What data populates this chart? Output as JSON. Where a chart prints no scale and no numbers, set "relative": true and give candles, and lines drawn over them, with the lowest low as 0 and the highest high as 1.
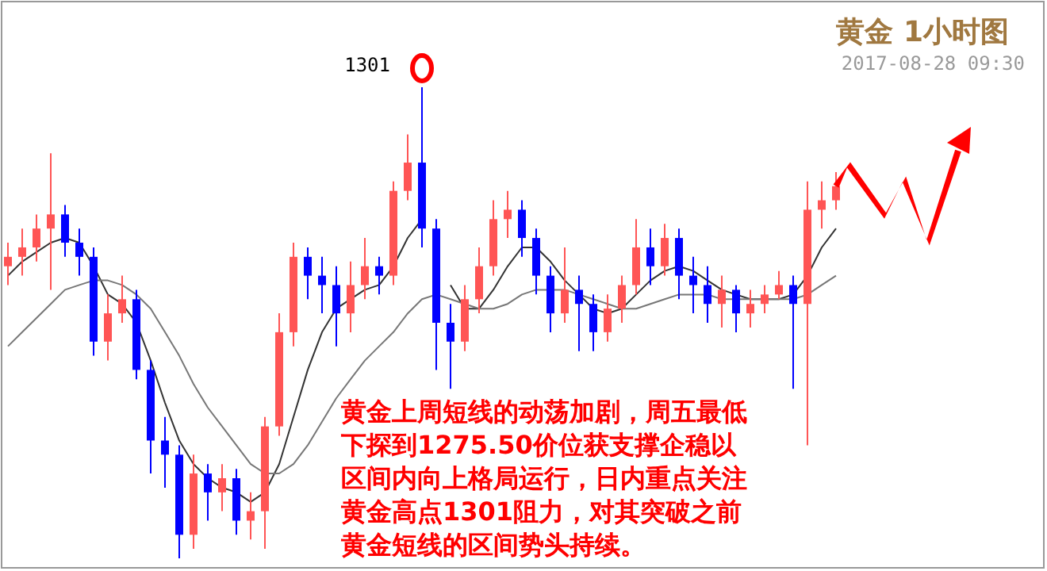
{
  "chart_data": {
    "type": "candlestick",
    "title": "黄金 1小时图",
    "subtitle": "2017-08-28 09:30",
    "relative": true,
    "categories": [
      null,
      null,
      null,
      null,
      null,
      null,
      null,
      null,
      null,
      null,
      null,
      null,
      null,
      null,
      null,
      null,
      null,
      null,
      null,
      null,
      null,
      null,
      null,
      null,
      null,
      null,
      null,
      null,
      null,
      null,
      null,
      null,
      null,
      null,
      null,
      null,
      null,
      null,
      null,
      null,
      null,
      null,
      null,
      null,
      null,
      null,
      null,
      null,
      null,
      null,
      null,
      null,
      null,
      null,
      null,
      null,
      null,
      null,
      null
    ],
    "ohlc": [
      [
        0.62,
        0.67,
        0.58,
        0.64
      ],
      [
        0.64,
        0.7,
        0.6,
        0.66
      ],
      [
        0.66,
        0.73,
        0.63,
        0.7
      ],
      [
        0.7,
        0.86,
        0.57,
        0.73
      ],
      [
        0.73,
        0.75,
        0.64,
        0.67
      ],
      [
        0.67,
        0.7,
        0.6,
        0.64
      ],
      [
        0.64,
        0.66,
        0.43,
        0.46
      ],
      [
        0.46,
        0.56,
        0.42,
        0.52
      ],
      [
        0.52,
        0.6,
        0.5,
        0.55
      ],
      [
        0.55,
        0.57,
        0.38,
        0.4
      ],
      [
        0.4,
        0.42,
        0.18,
        0.25
      ],
      [
        0.25,
        0.3,
        0.15,
        0.22
      ],
      [
        0.22,
        0.24,
        0.0,
        0.05
      ],
      [
        0.05,
        0.22,
        0.02,
        0.18
      ],
      [
        0.18,
        0.2,
        0.08,
        0.14
      ],
      [
        0.14,
        0.2,
        0.1,
        0.17
      ],
      [
        0.17,
        0.19,
        0.05,
        0.08
      ],
      [
        0.08,
        0.14,
        0.04,
        0.1
      ],
      [
        0.1,
        0.3,
        0.02,
        0.28
      ],
      [
        0.28,
        0.52,
        0.26,
        0.48
      ],
      [
        0.48,
        0.67,
        0.45,
        0.64
      ],
      [
        0.64,
        0.66,
        0.55,
        0.6
      ],
      [
        0.6,
        0.64,
        0.52,
        0.58
      ],
      [
        0.58,
        0.62,
        0.45,
        0.52
      ],
      [
        0.52,
        0.63,
        0.48,
        0.58
      ],
      [
        0.58,
        0.68,
        0.55,
        0.62
      ],
      [
        0.62,
        0.64,
        0.56,
        0.6
      ],
      [
        0.6,
        0.8,
        0.58,
        0.78
      ],
      [
        0.78,
        0.9,
        0.76,
        0.84
      ],
      [
        0.84,
        1.0,
        0.66,
        0.7
      ],
      [
        0.7,
        0.72,
        0.4,
        0.5
      ],
      [
        0.5,
        0.54,
        0.36,
        0.46
      ],
      [
        0.46,
        0.58,
        0.44,
        0.55
      ],
      [
        0.55,
        0.66,
        0.52,
        0.62
      ],
      [
        0.62,
        0.76,
        0.6,
        0.72
      ],
      [
        0.72,
        0.78,
        0.68,
        0.74
      ],
      [
        0.74,
        0.76,
        0.64,
        0.68
      ],
      [
        0.68,
        0.7,
        0.56,
        0.6
      ],
      [
        0.6,
        0.62,
        0.48,
        0.52
      ],
      [
        0.52,
        0.66,
        0.5,
        0.57
      ],
      [
        0.57,
        0.6,
        0.44,
        0.54
      ],
      [
        0.54,
        0.56,
        0.44,
        0.48
      ],
      [
        0.48,
        0.56,
        0.46,
        0.53
      ],
      [
        0.53,
        0.6,
        0.5,
        0.58
      ],
      [
        0.58,
        0.72,
        0.56,
        0.66
      ],
      [
        0.66,
        0.7,
        0.58,
        0.62
      ],
      [
        0.62,
        0.71,
        0.6,
        0.68
      ],
      [
        0.68,
        0.7,
        0.55,
        0.6
      ],
      [
        0.6,
        0.64,
        0.52,
        0.58
      ],
      [
        0.58,
        0.62,
        0.5,
        0.54
      ],
      [
        0.54,
        0.6,
        0.49,
        0.57
      ],
      [
        0.57,
        0.58,
        0.48,
        0.52
      ],
      [
        0.52,
        0.57,
        0.49,
        0.54
      ],
      [
        0.54,
        0.58,
        0.52,
        0.56
      ],
      [
        0.56,
        0.61,
        0.55,
        0.58
      ],
      [
        0.58,
        0.6,
        0.36,
        0.54
      ],
      [
        0.54,
        0.8,
        0.24,
        0.74
      ],
      [
        0.74,
        0.8,
        0.7,
        0.76
      ],
      [
        0.76,
        0.82,
        0.74,
        0.79
      ]
    ],
    "colors": [
      "#ff5555",
      "#ff5555",
      "#ff5555",
      "#ff5555",
      "#0000ff",
      "#0000ff",
      "#0000ff",
      "#ff5555",
      "#ff5555",
      "#0000ff",
      "#0000ff",
      "#0000ff",
      "#0000ff",
      "#ff5555",
      "#0000ff",
      "#ff5555",
      "#0000ff",
      "#ff5555",
      "#ff5555",
      "#ff5555",
      "#ff5555",
      "#0000ff",
      "#0000ff",
      "#0000ff",
      "#ff5555",
      "#ff5555",
      "#0000ff",
      "#ff5555",
      "#ff5555",
      "#0000ff",
      "#0000ff",
      "#0000ff",
      "#ff5555",
      "#ff5555",
      "#ff5555",
      "#ff5555",
      "#0000ff",
      "#0000ff",
      "#0000ff",
      "#ff5555",
      "#0000ff",
      "#0000ff",
      "#ff5555",
      "#ff5555",
      "#ff5555",
      "#0000ff",
      "#ff5555",
      "#0000ff",
      "#0000ff",
      "#0000ff",
      "#ff5555",
      "#0000ff",
      "#ff5555",
      "#ff5555",
      "#ff5555",
      "#0000ff",
      "#ff5555",
      "#ff5555",
      "#ff5555"
    ],
    "series": [
      {
        "type": "line",
        "color": "#333333",
        "values": [
          0.6,
          0.63,
          0.65,
          0.67,
          0.68,
          0.67,
          0.62,
          0.56,
          0.54,
          0.5,
          0.42,
          0.33,
          0.25,
          0.2,
          0.17,
          0.15,
          0.14,
          0.12,
          0.14,
          0.2,
          0.3,
          0.4,
          0.48,
          0.53,
          0.55,
          0.57,
          0.58,
          0.62,
          0.68,
          0.72,
          null,
          0.58,
          0.53,
          0.53,
          0.57,
          0.62,
          0.66,
          0.66,
          0.63,
          0.59,
          0.56,
          0.53,
          0.52,
          0.53,
          0.56,
          0.59,
          0.61,
          0.62,
          0.61,
          0.59,
          0.57,
          0.56,
          0.55,
          0.55,
          0.55,
          0.56,
          0.6,
          0.66,
          0.7
        ]
      },
      {
        "type": "line",
        "color": "#777777",
        "values": [
          0.45,
          0.48,
          0.51,
          0.54,
          0.57,
          0.58,
          0.59,
          0.59,
          0.58,
          0.56,
          0.53,
          0.48,
          0.43,
          0.37,
          0.32,
          0.28,
          0.24,
          0.2,
          0.18,
          0.18,
          0.2,
          0.24,
          0.29,
          0.34,
          0.38,
          0.42,
          0.45,
          0.48,
          0.52,
          0.55,
          0.56,
          0.55,
          0.54,
          0.53,
          0.53,
          0.54,
          0.56,
          0.57,
          0.57,
          0.57,
          0.56,
          0.55,
          0.54,
          0.53,
          0.53,
          0.54,
          0.55,
          0.56,
          0.56,
          0.56,
          0.55,
          0.55,
          0.55,
          0.55,
          0.55,
          0.55,
          0.56,
          0.58,
          0.6
        ]
      }
    ],
    "annotations": [
      "1301",
      "黄金上周短线的动荡加剧，周五最低下探到1275.50价位获支撑企稳以区间内向上格局运行，日内重点关注黄金高点1301阻力，对其突破之前黄金短线的区间势头持续。"
    ]
  }
}
